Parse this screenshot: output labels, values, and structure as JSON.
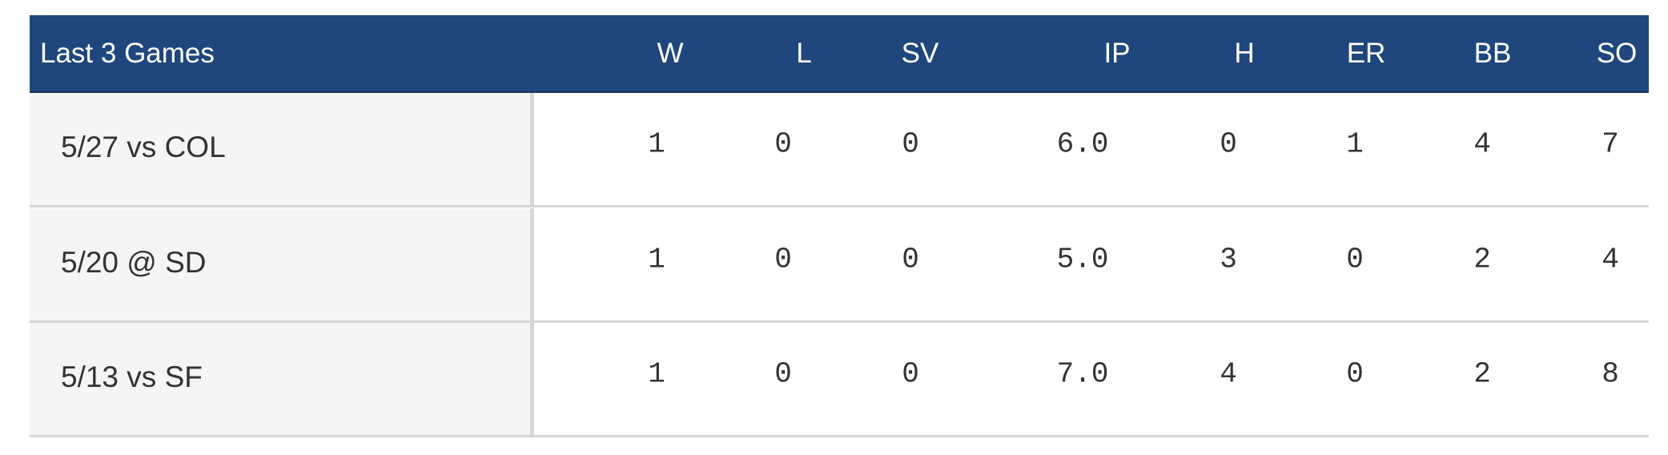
{
  "table": {
    "header": [
      "Last 3 Games",
      "W",
      "L",
      "SV",
      "IP",
      "H",
      "ER",
      "BB",
      "SO"
    ],
    "rows": [
      [
        "5/27 vs COL",
        "1",
        "0",
        "0",
        "6.0",
        "0",
        "1",
        "4",
        "7"
      ],
      [
        "5/20 @ SD",
        "1",
        "0",
        "0",
        "5.0",
        "3",
        "0",
        "2",
        "4"
      ],
      [
        "5/13 vs SF",
        "1",
        "0",
        "0",
        "7.0",
        "4",
        "0",
        "2",
        "8"
      ]
    ]
  }
}
